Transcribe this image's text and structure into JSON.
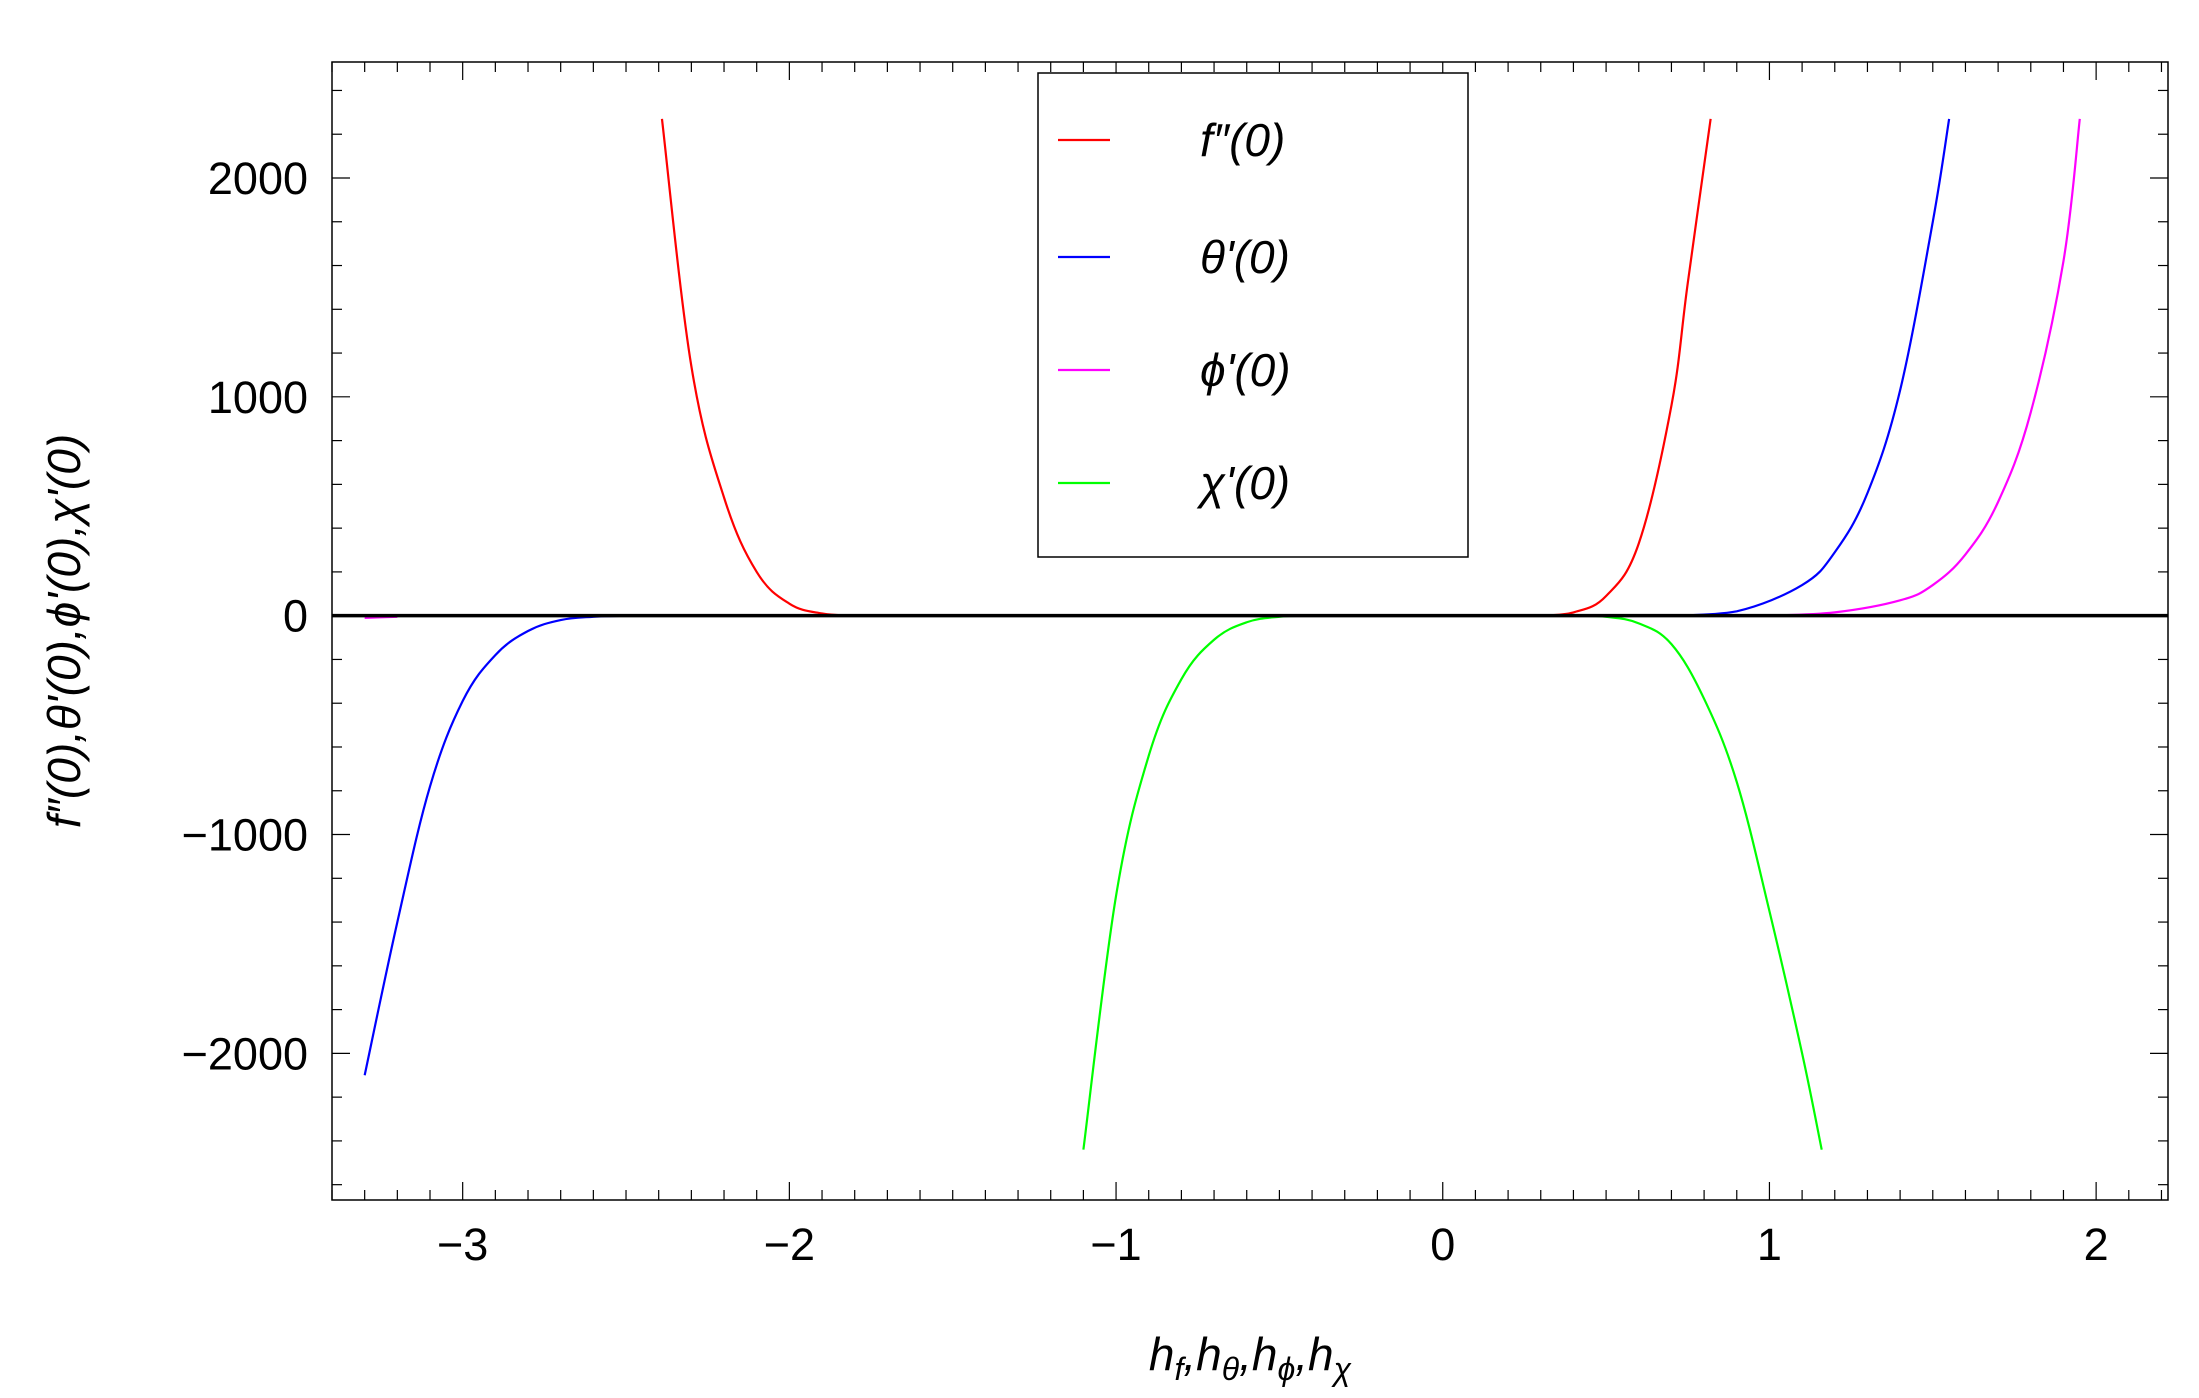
{
  "chart_data": {
    "type": "line",
    "title": "",
    "xlabel": "h_f,h_θ,h_ϕ,h_χ",
    "ylabel": "f″(0),θ'(0),ϕ'(0),χ'(0)",
    "xlim": [
      -3.4,
      2.22
    ],
    "ylim": [
      -2670,
      2530
    ],
    "x_ticks": [
      -3,
      -2,
      -1,
      0,
      1,
      2
    ],
    "x_tick_labels": [
      "−3",
      "−2",
      "−1",
      "0",
      "1",
      "2"
    ],
    "y_ticks": [
      -2000,
      -1000,
      0,
      1000,
      2000
    ],
    "y_tick_labels": [
      "−2000",
      "−1000",
      "0",
      "1000",
      "2000"
    ],
    "grid": false,
    "legend_position": "top-center",
    "series": [
      {
        "name": "f″(0)",
        "color": "#ff0000",
        "x": [
          -2.39,
          -2.3,
          -2.2,
          -2.1,
          -2.0,
          -1.9,
          -1.8,
          0.3,
          0.4,
          0.5,
          0.6,
          0.7,
          0.75,
          0.82
        ],
        "y": [
          2270,
          1140,
          540,
          200,
          55,
          10,
          0,
          0,
          15,
          90,
          330,
          960,
          1520,
          2270
        ]
      },
      {
        "name": "θ'(0)",
        "color": "#0000ff",
        "x": [
          -3.3,
          -3.2,
          -3.1,
          -3.0,
          -2.9,
          -2.8,
          -2.7,
          -2.6,
          -2.5,
          0.7,
          0.9,
          1.1,
          1.2,
          1.3,
          1.4,
          1.5,
          1.55
        ],
        "y": [
          -2100,
          -1400,
          -780,
          -390,
          -180,
          -70,
          -20,
          -5,
          0,
          0,
          20,
          140,
          290,
          560,
          1030,
          1800,
          2270
        ]
      },
      {
        "name": "ϕ'(0)",
        "color": "#ff00ff",
        "x": [
          -3.3,
          -3.2,
          1.0,
          1.2,
          1.4,
          1.5,
          1.6,
          1.7,
          1.8,
          1.9,
          1.95
        ],
        "y": [
          -10,
          -5,
          0,
          15,
          70,
          140,
          280,
          520,
          930,
          1620,
          2270
        ]
      },
      {
        "name": "χ'(0)",
        "color": "#00ff00",
        "x": [
          -1.1,
          -1.0,
          -0.9,
          -0.8,
          -0.7,
          -0.6,
          -0.5,
          -0.4,
          0.0,
          0.4,
          0.5,
          0.6,
          0.7,
          0.8,
          0.9,
          1.0,
          1.1,
          1.16
        ],
        "y": [
          -2440,
          -1280,
          -640,
          -290,
          -110,
          -30,
          -5,
          0,
          0,
          0,
          -5,
          -35,
          -130,
          -380,
          -760,
          -1350,
          -2000,
          -2440
        ]
      }
    ]
  }
}
